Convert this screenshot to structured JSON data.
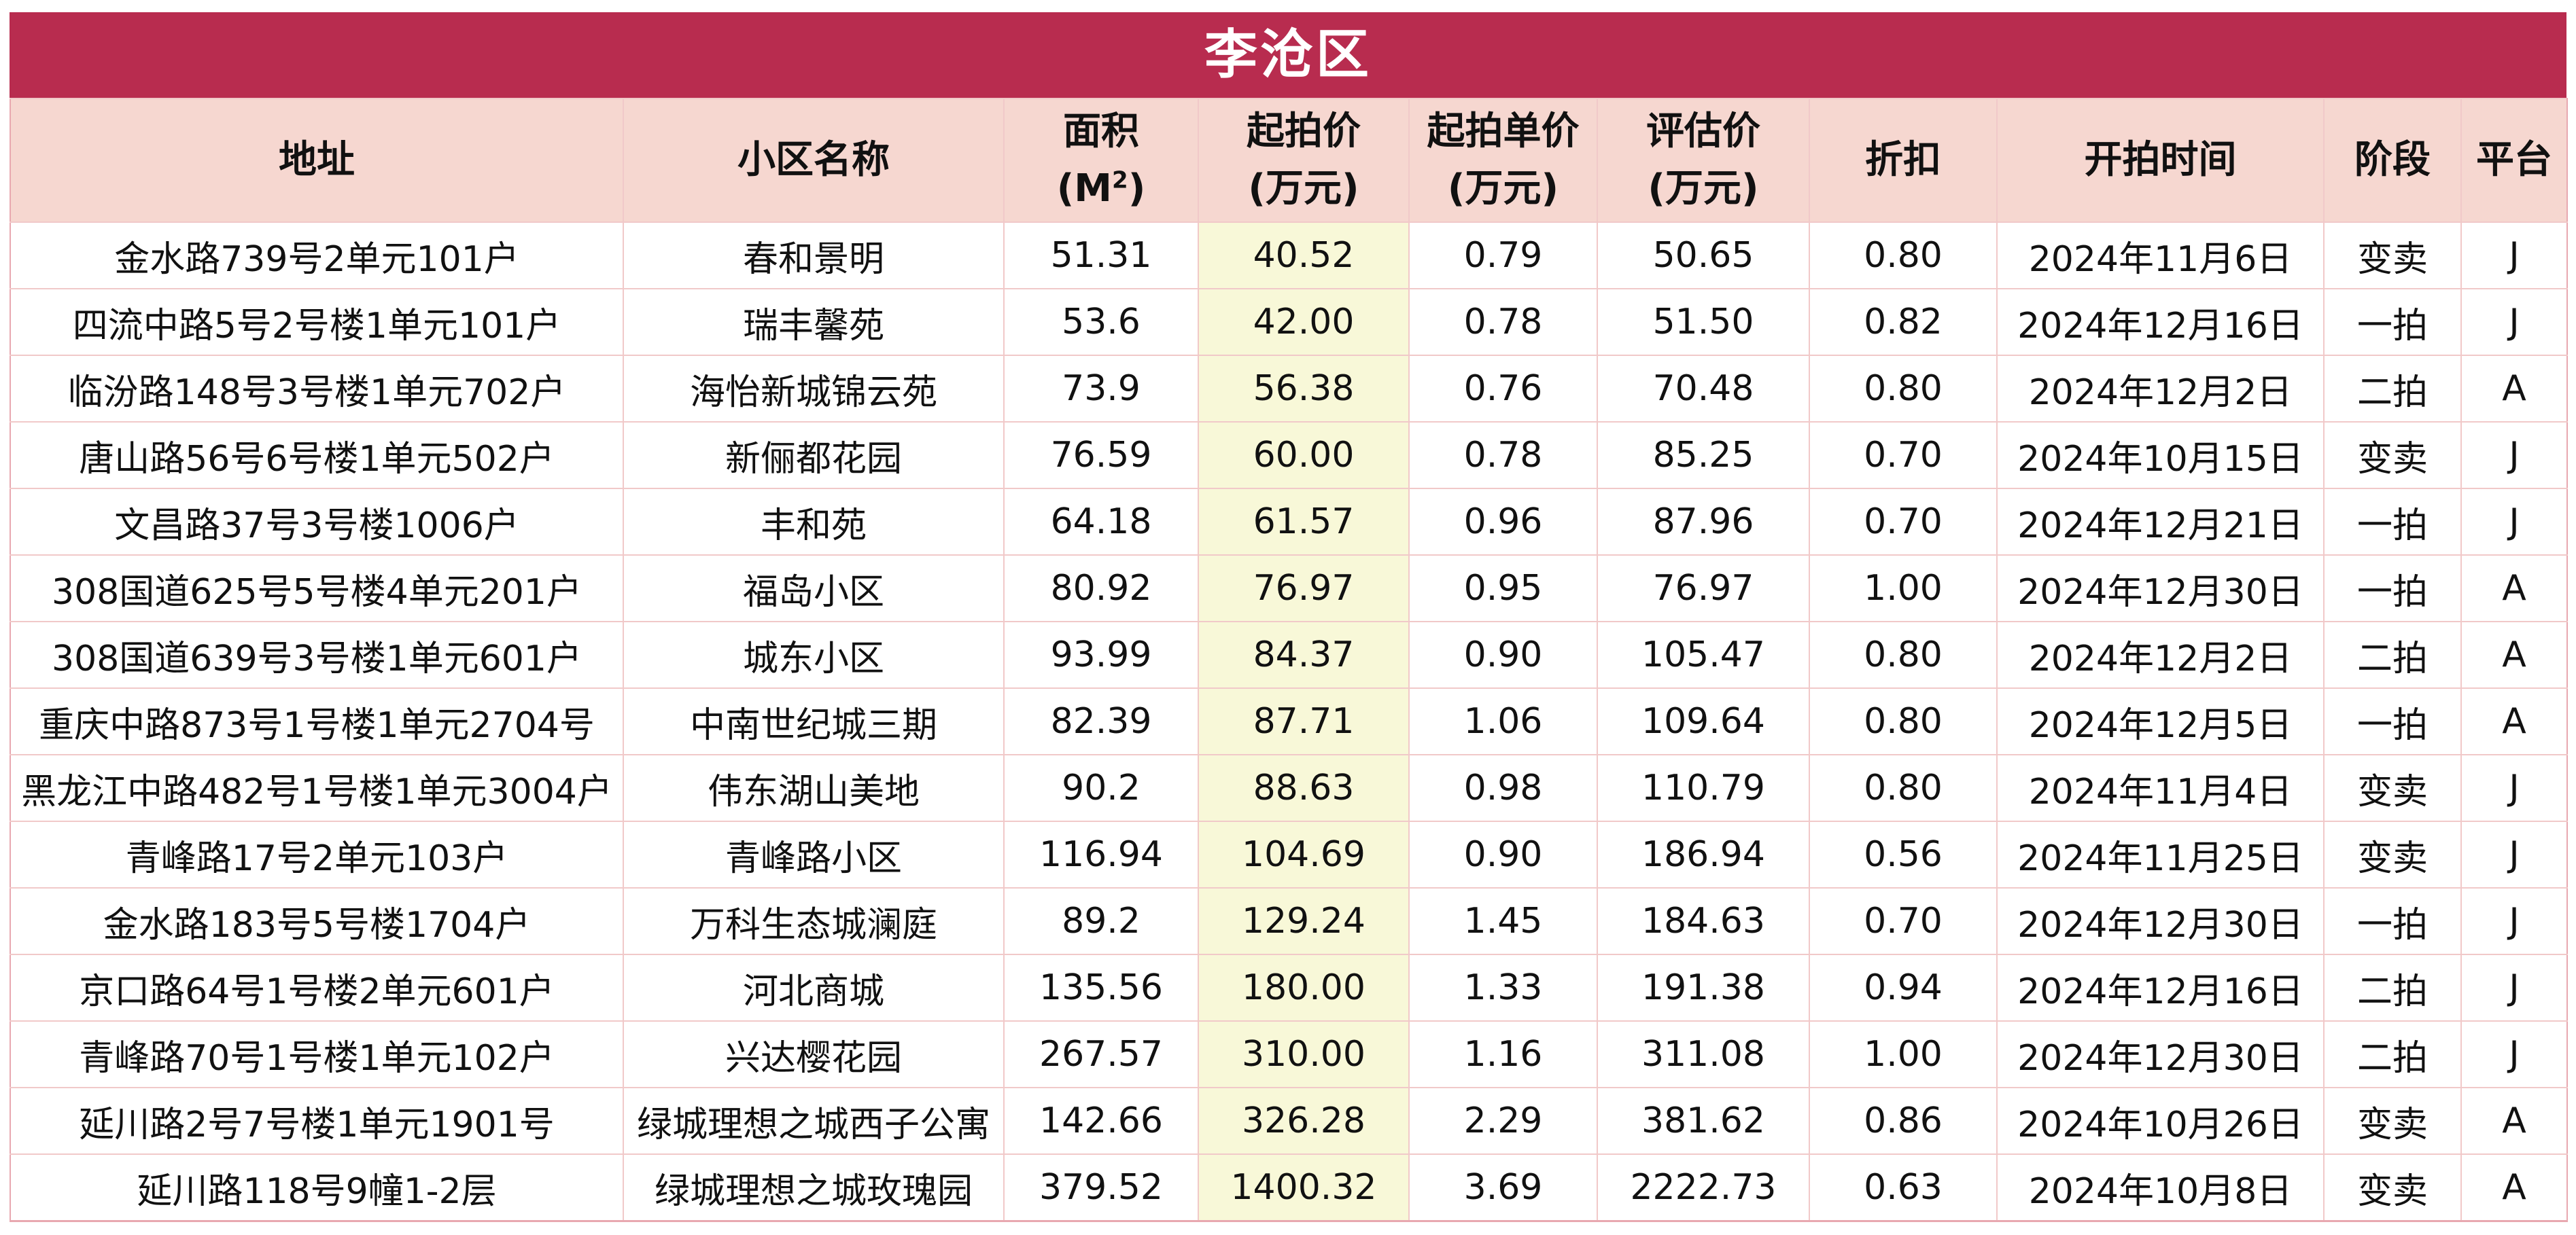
{
  "title": "李沧区",
  "headers": {
    "address": "地址",
    "community": "小区名称",
    "area_line1": "面积",
    "area_line2_prefix": "(M",
    "area_line2_sup": "2",
    "area_line2_suffix": ")",
    "start_price_line1": "起拍价",
    "start_price_line2": "(万元)",
    "unit_price_line1": "起拍单价",
    "unit_price_line2": "(万元)",
    "appraisal_line1": "评估价",
    "appraisal_line2": "(万元)",
    "discount": "折扣",
    "start_time": "开拍时间",
    "stage": "阶段",
    "platform": "平台"
  },
  "colors": {
    "title_bg": "#b82c4f",
    "header_bg": "#f6d7d0",
    "highlight_col_bg": "#f8f8d8",
    "grid_line": "#f1c9c9"
  },
  "rows": [
    {
      "address": "金水路739号2单元101户",
      "community": "春和景明",
      "area": "51.31",
      "start_price": "40.52",
      "unit_price": "0.79",
      "appraisal": "50.65",
      "discount": "0.80",
      "start_time": "2024年11月6日",
      "stage": "变卖",
      "platform": "J"
    },
    {
      "address": "四流中路5号2号楼1单元101户",
      "community": "瑞丰馨苑",
      "area": "53.6",
      "start_price": "42.00",
      "unit_price": "0.78",
      "appraisal": "51.50",
      "discount": "0.82",
      "start_time": "2024年12月16日",
      "stage": "一拍",
      "platform": "J"
    },
    {
      "address": "临汾路148号3号楼1单元702户",
      "community": "海怡新城锦云苑",
      "area": "73.9",
      "start_price": "56.38",
      "unit_price": "0.76",
      "appraisal": "70.48",
      "discount": "0.80",
      "start_time": "2024年12月2日",
      "stage": "二拍",
      "platform": "A"
    },
    {
      "address": "唐山路56号6号楼1单元502户",
      "community": "新俪都花园",
      "area": "76.59",
      "start_price": "60.00",
      "unit_price": "0.78",
      "appraisal": "85.25",
      "discount": "0.70",
      "start_time": "2024年10月15日",
      "stage": "变卖",
      "platform": "J"
    },
    {
      "address": "文昌路37号3号楼1006户",
      "community": "丰和苑",
      "area": "64.18",
      "start_price": "61.57",
      "unit_price": "0.96",
      "appraisal": "87.96",
      "discount": "0.70",
      "start_time": "2024年12月21日",
      "stage": "一拍",
      "platform": "J"
    },
    {
      "address": "308国道625号5号楼4单元201户",
      "community": "福岛小区",
      "area": "80.92",
      "start_price": "76.97",
      "unit_price": "0.95",
      "appraisal": "76.97",
      "discount": "1.00",
      "start_time": "2024年12月30日",
      "stage": "一拍",
      "platform": "A"
    },
    {
      "address": "308国道639号3号楼1单元601户",
      "community": "城东小区",
      "area": "93.99",
      "start_price": "84.37",
      "unit_price": "0.90",
      "appraisal": "105.47",
      "discount": "0.80",
      "start_time": "2024年12月2日",
      "stage": "二拍",
      "platform": "A"
    },
    {
      "address": "重庆中路873号1号楼1单元2704号",
      "community": "中南世纪城三期",
      "area": "82.39",
      "start_price": "87.71",
      "unit_price": "1.06",
      "appraisal": "109.64",
      "discount": "0.80",
      "start_time": "2024年12月5日",
      "stage": "一拍",
      "platform": "A"
    },
    {
      "address": "黑龙江中路482号1号楼1单元3004户",
      "community": "伟东湖山美地",
      "area": "90.2",
      "start_price": "88.63",
      "unit_price": "0.98",
      "appraisal": "110.79",
      "discount": "0.80",
      "start_time": "2024年11月4日",
      "stage": "变卖",
      "platform": "J"
    },
    {
      "address": "青峰路17号2单元103户",
      "community": "青峰路小区",
      "area": "116.94",
      "start_price": "104.69",
      "unit_price": "0.90",
      "appraisal": "186.94",
      "discount": "0.56",
      "start_time": "2024年11月25日",
      "stage": "变卖",
      "platform": "J"
    },
    {
      "address": "金水路183号5号楼1704户",
      "community": "万科生态城澜庭",
      "area": "89.2",
      "start_price": "129.24",
      "unit_price": "1.45",
      "appraisal": "184.63",
      "discount": "0.70",
      "start_time": "2024年12月30日",
      "stage": "一拍",
      "platform": "J"
    },
    {
      "address": "京口路64号1号楼2单元601户",
      "community": "河北商城",
      "area": "135.56",
      "start_price": "180.00",
      "unit_price": "1.33",
      "appraisal": "191.38",
      "discount": "0.94",
      "start_time": "2024年12月16日",
      "stage": "二拍",
      "platform": "J"
    },
    {
      "address": "青峰路70号1号楼1单元102户",
      "community": "兴达樱花园",
      "area": "267.57",
      "start_price": "310.00",
      "unit_price": "1.16",
      "appraisal": "311.08",
      "discount": "1.00",
      "start_time": "2024年12月30日",
      "stage": "二拍",
      "platform": "J"
    },
    {
      "address": "延川路2号7号楼1单元1901号",
      "community": "绿城理想之城西子公寓",
      "area": "142.66",
      "start_price": "326.28",
      "unit_price": "2.29",
      "appraisal": "381.62",
      "discount": "0.86",
      "start_time": "2024年10月26日",
      "stage": "变卖",
      "platform": "A"
    },
    {
      "address": "延川路118号9幢1-2层",
      "community": "绿城理想之城玫瑰园",
      "area": "379.52",
      "start_price": "1400.32",
      "unit_price": "3.69",
      "appraisal": "2222.73",
      "discount": "0.63",
      "start_time": "2024年10月8日",
      "stage": "变卖",
      "platform": "A"
    }
  ]
}
